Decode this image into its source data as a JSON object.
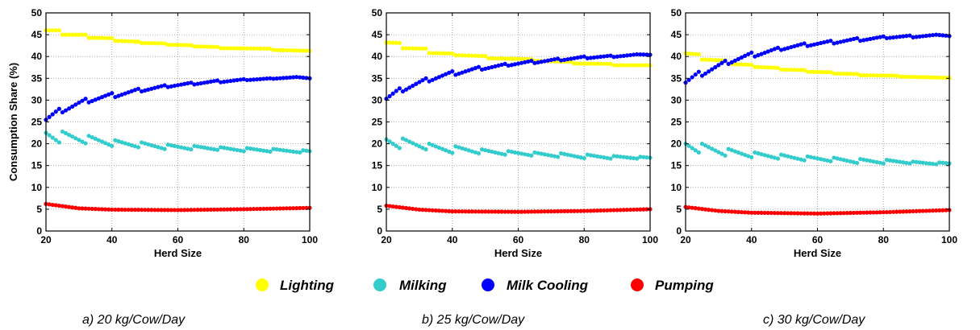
{
  "chart_data": [
    {
      "type": "scatter",
      "caption": "a) 20 kg/Cow/Day",
      "xlabel": "Herd Size",
      "ylabel": "Consumption Share (%)",
      "xlim": [
        20,
        100
      ],
      "ylim": [
        0,
        50
      ],
      "xticks": [
        20,
        40,
        60,
        80,
        100
      ],
      "yticks": [
        0,
        5,
        10,
        15,
        20,
        25,
        30,
        35,
        40,
        45,
        50
      ],
      "grid": true,
      "series": [
        {
          "name": "Lighting",
          "color": "#ffff00",
          "anchors": [
            [
              20,
              46
            ],
            [
              24,
              46
            ],
            [
              25,
              45
            ],
            [
              32,
              45
            ],
            [
              33,
              44.3
            ],
            [
              40,
              44.2
            ],
            [
              41,
              43.6
            ],
            [
              48,
              43.4
            ],
            [
              49,
              43.1
            ],
            [
              56,
              43
            ],
            [
              57,
              42.7
            ],
            [
              64,
              42.6
            ],
            [
              65,
              42.3
            ],
            [
              72,
              42.2
            ],
            [
              73,
              41.9
            ],
            [
              88,
              41.8
            ],
            [
              89,
              41.5
            ],
            [
              100,
              41.3
            ]
          ]
        },
        {
          "name": "Milking",
          "color": "#33cccc",
          "anchors": [
            [
              20,
              22.5
            ],
            [
              24,
              20.3
            ],
            [
              25,
              22.8
            ],
            [
              32,
              20.1
            ],
            [
              33,
              21.8
            ],
            [
              40,
              19.5
            ],
            [
              41,
              20.8
            ],
            [
              48,
              19.2
            ],
            [
              49,
              20.3
            ],
            [
              56,
              18.8
            ],
            [
              57,
              19.8
            ],
            [
              64,
              18.7
            ],
            [
              65,
              19.5
            ],
            [
              72,
              18.6
            ],
            [
              73,
              19.2
            ],
            [
              80,
              18.3
            ],
            [
              81,
              19
            ],
            [
              88,
              18.2
            ],
            [
              89,
              18.8
            ],
            [
              97,
              18
            ],
            [
              98,
              18.5
            ],
            [
              100,
              18.3
            ]
          ]
        },
        {
          "name": "Milk Cooling",
          "color": "#0000ff",
          "anchors": [
            [
              20,
              25.5
            ],
            [
              24,
              28
            ],
            [
              25,
              27.2
            ],
            [
              32,
              30.3
            ],
            [
              33,
              29.5
            ],
            [
              40,
              31.6
            ],
            [
              41,
              30.7
            ],
            [
              48,
              32.6
            ],
            [
              49,
              32
            ],
            [
              56,
              33.4
            ],
            [
              57,
              33
            ],
            [
              64,
              34
            ],
            [
              65,
              33.6
            ],
            [
              72,
              34.5
            ],
            [
              73,
              34.1
            ],
            [
              80,
              34.8
            ],
            [
              81,
              34.6
            ],
            [
              88,
              35
            ],
            [
              89,
              34.9
            ],
            [
              96,
              35.3
            ],
            [
              100,
              35
            ]
          ]
        },
        {
          "name": "Pumping",
          "color": "#ff0000",
          "anchors": [
            [
              20,
              6.2
            ],
            [
              30,
              5.2
            ],
            [
              40,
              4.9
            ],
            [
              60,
              4.8
            ],
            [
              80,
              5
            ],
            [
              100,
              5.3
            ]
          ]
        }
      ]
    },
    {
      "type": "scatter",
      "caption": "b) 25 kg/Cow/Day",
      "xlabel": "Herd Size",
      "ylabel": "",
      "xlim": [
        20,
        100
      ],
      "ylim": [
        0,
        50
      ],
      "xticks": [
        20,
        40,
        60,
        80,
        100
      ],
      "yticks": [
        0,
        5,
        10,
        15,
        20,
        25,
        30,
        35,
        40,
        45,
        50
      ],
      "grid": true,
      "series": [
        {
          "name": "Lighting",
          "color": "#ffff00",
          "anchors": [
            [
              20,
              43.2
            ],
            [
              24,
              43.1
            ],
            [
              25,
              41.9
            ],
            [
              32,
              41.8
            ],
            [
              33,
              40.8
            ],
            [
              40,
              40.7
            ],
            [
              41,
              40.3
            ],
            [
              50,
              40.1
            ],
            [
              51,
              39.6
            ],
            [
              64,
              39.4
            ],
            [
              65,
              39
            ],
            [
              76,
              38.8
            ],
            [
              77,
              38.4
            ],
            [
              88,
              38.3
            ],
            [
              89,
              38
            ],
            [
              100,
              38
            ]
          ]
        },
        {
          "name": "Milking",
          "color": "#33cccc",
          "anchors": [
            [
              20,
              21
            ],
            [
              24,
              19
            ],
            [
              25,
              21.2
            ],
            [
              32,
              18.7
            ],
            [
              33,
              20
            ],
            [
              40,
              17.9
            ],
            [
              41,
              19.4
            ],
            [
              48,
              17.8
            ],
            [
              49,
              18.7
            ],
            [
              56,
              17.5
            ],
            [
              57,
              18.3
            ],
            [
              64,
              17.3
            ],
            [
              65,
              18
            ],
            [
              72,
              17
            ],
            [
              73,
              17.8
            ],
            [
              80,
              16.7
            ],
            [
              81,
              17.5
            ],
            [
              88,
              16.6
            ],
            [
              89,
              17.2
            ],
            [
              96,
              16.6
            ],
            [
              97,
              17
            ],
            [
              100,
              16.8
            ]
          ]
        },
        {
          "name": "Milk Cooling",
          "color": "#0000ff",
          "anchors": [
            [
              20,
              30.3
            ],
            [
              24,
              32.7
            ],
            [
              25,
              32
            ],
            [
              32,
              35
            ],
            [
              33,
              34.3
            ],
            [
              40,
              36.6
            ],
            [
              41,
              35.8
            ],
            [
              48,
              37.6
            ],
            [
              49,
              37
            ],
            [
              56,
              38.3
            ],
            [
              57,
              37.9
            ],
            [
              64,
              39
            ],
            [
              65,
              38.5
            ],
            [
              72,
              39.5
            ],
            [
              73,
              39.1
            ],
            [
              80,
              40
            ],
            [
              81,
              39.6
            ],
            [
              88,
              40.2
            ],
            [
              89,
              39.9
            ],
            [
              96,
              40.5
            ],
            [
              100,
              40.4
            ]
          ]
        },
        {
          "name": "Pumping",
          "color": "#ff0000",
          "anchors": [
            [
              20,
              5.8
            ],
            [
              30,
              4.9
            ],
            [
              40,
              4.5
            ],
            [
              60,
              4.4
            ],
            [
              80,
              4.6
            ],
            [
              100,
              5
            ]
          ]
        }
      ]
    },
    {
      "type": "scatter",
      "caption": "c) 30 kg/Cow/Day",
      "xlabel": "Herd Size",
      "ylabel": "",
      "xlim": [
        20,
        100
      ],
      "ylim": [
        0,
        50
      ],
      "xticks": [
        20,
        40,
        60,
        80,
        100
      ],
      "yticks": [
        0,
        5,
        10,
        15,
        20,
        25,
        30,
        35,
        40,
        45,
        50
      ],
      "grid": true,
      "series": [
        {
          "name": "Lighting",
          "color": "#ffff00",
          "anchors": [
            [
              20,
              40.7
            ],
            [
              24,
              40.5
            ],
            [
              25,
              39.3
            ],
            [
              32,
              39.1
            ],
            [
              33,
              38.3
            ],
            [
              40,
              38.1
            ],
            [
              41,
              37.6
            ],
            [
              48,
              37.4
            ],
            [
              49,
              37
            ],
            [
              56,
              36.9
            ],
            [
              57,
              36.5
            ],
            [
              64,
              36.4
            ],
            [
              65,
              36.1
            ],
            [
              72,
              36
            ],
            [
              73,
              35.7
            ],
            [
              84,
              35.6
            ],
            [
              85,
              35.4
            ],
            [
              100,
              35.1
            ]
          ]
        },
        {
          "name": "Milking",
          "color": "#33cccc",
          "anchors": [
            [
              20,
              20
            ],
            [
              24,
              18
            ],
            [
              25,
              20
            ],
            [
              32,
              17.3
            ],
            [
              33,
              18.8
            ],
            [
              40,
              16.9
            ],
            [
              41,
              18
            ],
            [
              48,
              16.6
            ],
            [
              49,
              17.5
            ],
            [
              56,
              16.2
            ],
            [
              57,
              17.1
            ],
            [
              64,
              16
            ],
            [
              65,
              16.8
            ],
            [
              72,
              15.6
            ],
            [
              73,
              16.5
            ],
            [
              80,
              15.5
            ],
            [
              81,
              16.3
            ],
            [
              88,
              15.5
            ],
            [
              89,
              15.9
            ],
            [
              96,
              15.3
            ],
            [
              97,
              15.7
            ],
            [
              100,
              15.5
            ]
          ]
        },
        {
          "name": "Milk Cooling",
          "color": "#0000ff",
          "anchors": [
            [
              20,
              34
            ],
            [
              24,
              36.5
            ],
            [
              25,
              35.6
            ],
            [
              32,
              39
            ],
            [
              33,
              38.3
            ],
            [
              40,
              40.9
            ],
            [
              41,
              40
            ],
            [
              48,
              42
            ],
            [
              49,
              41.5
            ],
            [
              56,
              43
            ],
            [
              57,
              42.4
            ],
            [
              64,
              43.6
            ],
            [
              65,
              43
            ],
            [
              72,
              44.2
            ],
            [
              73,
              43.6
            ],
            [
              80,
              44.6
            ],
            [
              81,
              44.2
            ],
            [
              88,
              44.8
            ],
            [
              89,
              44.4
            ],
            [
              96,
              45
            ],
            [
              100,
              44.7
            ]
          ]
        },
        {
          "name": "Pumping",
          "color": "#ff0000",
          "anchors": [
            [
              20,
              5.5
            ],
            [
              30,
              4.6
            ],
            [
              40,
              4.2
            ],
            [
              60,
              4
            ],
            [
              80,
              4.3
            ],
            [
              100,
              4.8
            ]
          ]
        }
      ]
    }
  ],
  "legend": {
    "placement": "bottom-center",
    "items": [
      {
        "label": "Lighting",
        "color": "#ffff00"
      },
      {
        "label": "Milking",
        "color": "#33cccc"
      },
      {
        "label": "Milk Cooling",
        "color": "#0000ff"
      },
      {
        "label": "Pumping",
        "color": "#ff0000"
      }
    ]
  }
}
